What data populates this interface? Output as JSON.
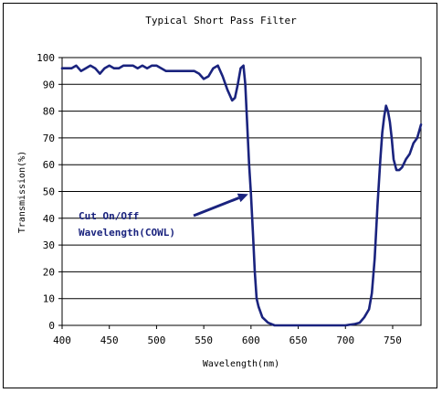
{
  "chart_data": {
    "type": "line",
    "title": "Typical Short Pass Filter",
    "xlabel": "Wavelength(nm)",
    "ylabel": "Transmission(%)",
    "xlim": [
      400,
      780
    ],
    "ylim": [
      0,
      100
    ],
    "x_ticks": [
      400,
      450,
      500,
      550,
      600,
      650,
      700,
      750
    ],
    "y_ticks": [
      0,
      10,
      20,
      30,
      40,
      50,
      60,
      70,
      80,
      90,
      100
    ],
    "grid": "horizontal",
    "line_color": "#1a237e",
    "annotation": {
      "lines": [
        "Cut On/Off",
        "Wavelength(COWL)"
      ],
      "points_to": [
        600,
        49
      ]
    },
    "series": [
      {
        "x": [
          400,
          405,
          410,
          415,
          420,
          425,
          430,
          435,
          440,
          445,
          450,
          455,
          460,
          465,
          470,
          475,
          480,
          485,
          490,
          495,
          500,
          505,
          510,
          515,
          520,
          525,
          530,
          535,
          540,
          545,
          550,
          555,
          560,
          565,
          570,
          575,
          580,
          583,
          586,
          589,
          592,
          594,
          596,
          598,
          600,
          602,
          604,
          606,
          608,
          612,
          618,
          625,
          640,
          660,
          680,
          700,
          710,
          715,
          720,
          725,
          728,
          731,
          734,
          737,
          739,
          741,
          743,
          745,
          747,
          749,
          751,
          754,
          757,
          760,
          764,
          768,
          772,
          776,
          780
        ],
        "y": [
          96,
          96,
          96,
          97,
          95,
          96,
          97,
          96,
          94,
          96,
          97,
          96,
          96,
          97,
          97,
          97,
          96,
          97,
          96,
          97,
          97,
          96,
          95,
          95,
          95,
          95,
          95,
          95,
          95,
          94,
          92,
          93,
          96,
          97,
          93,
          88,
          84,
          85,
          90,
          96,
          97,
          90,
          75,
          60,
          49,
          35,
          20,
          10,
          7,
          3,
          1,
          0,
          0,
          0,
          0,
          0,
          0.5,
          1,
          3,
          6,
          12,
          25,
          45,
          62,
          72,
          78,
          82,
          80,
          76,
          70,
          62,
          58,
          58,
          59,
          62,
          64,
          68,
          70,
          75
        ]
      }
    ]
  }
}
